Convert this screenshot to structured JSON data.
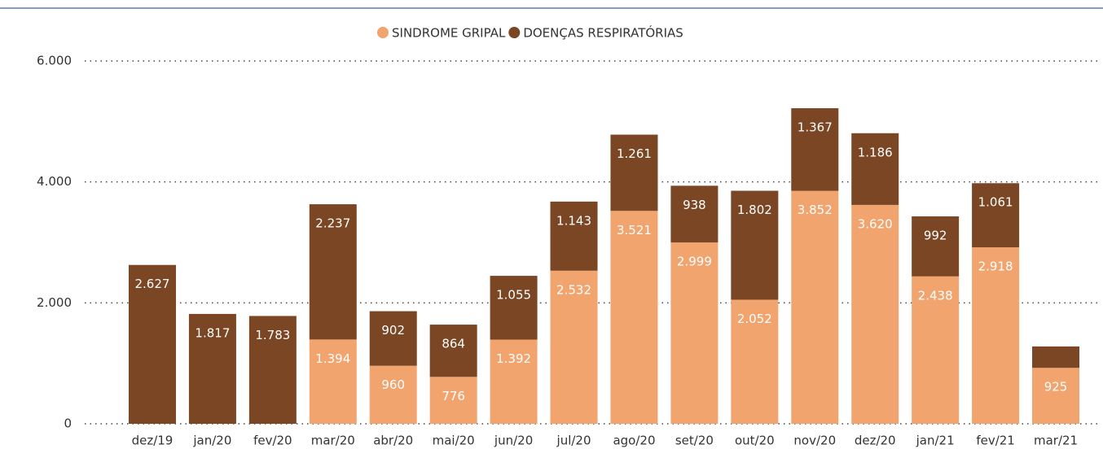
{
  "chart_data": {
    "type": "stacked_bar",
    "categories": [
      "dez/19",
      "jan/20",
      "fev/20",
      "mar/20",
      "abr/20",
      "mai/20",
      "jun/20",
      "jul/20",
      "ago/20",
      "set/20",
      "out/20",
      "nov/20",
      "dez/20",
      "jan/21",
      "fev/21",
      "mar/21"
    ],
    "series": [
      {
        "name": "SINDROME GRIPAL",
        "color": "#F2A46F",
        "values": [
          null,
          null,
          null,
          1394,
          960,
          776,
          1392,
          2532,
          3521,
          2999,
          2052,
          3852,
          3620,
          2438,
          2918,
          925
        ],
        "value_labels": [
          null,
          null,
          null,
          "1.394",
          "960",
          "776",
          "1.392",
          "2.532",
          "3.521",
          "2.999",
          "2.052",
          "3.852",
          "3.620",
          "2.438",
          "2.918",
          "925"
        ]
      },
      {
        "name": "DOENÇAS RESPIRATÓRIAS",
        "color": "#7A4624",
        "values": [
          2627,
          1817,
          1783,
          2237,
          902,
          864,
          1055,
          1143,
          1261,
          938,
          1802,
          1367,
          1186,
          992,
          1061,
          354
        ],
        "value_labels": [
          "2.627",
          "1.817",
          "1.783",
          "2.237",
          "902",
          "864",
          "1.055",
          "1.143",
          "1.261",
          "938",
          "1.802",
          "1.367",
          "1.186",
          "992",
          "1.061",
          null
        ]
      }
    ],
    "ylim": [
      0,
      6000
    ],
    "yticks": [
      0,
      {
        "value": 2000,
        "label": "2.000"
      },
      {
        "value": 4000,
        "label": "4.000"
      },
      {
        "value": 6000,
        "label": "6.000"
      }
    ],
    "grid": true,
    "legend": "top"
  }
}
